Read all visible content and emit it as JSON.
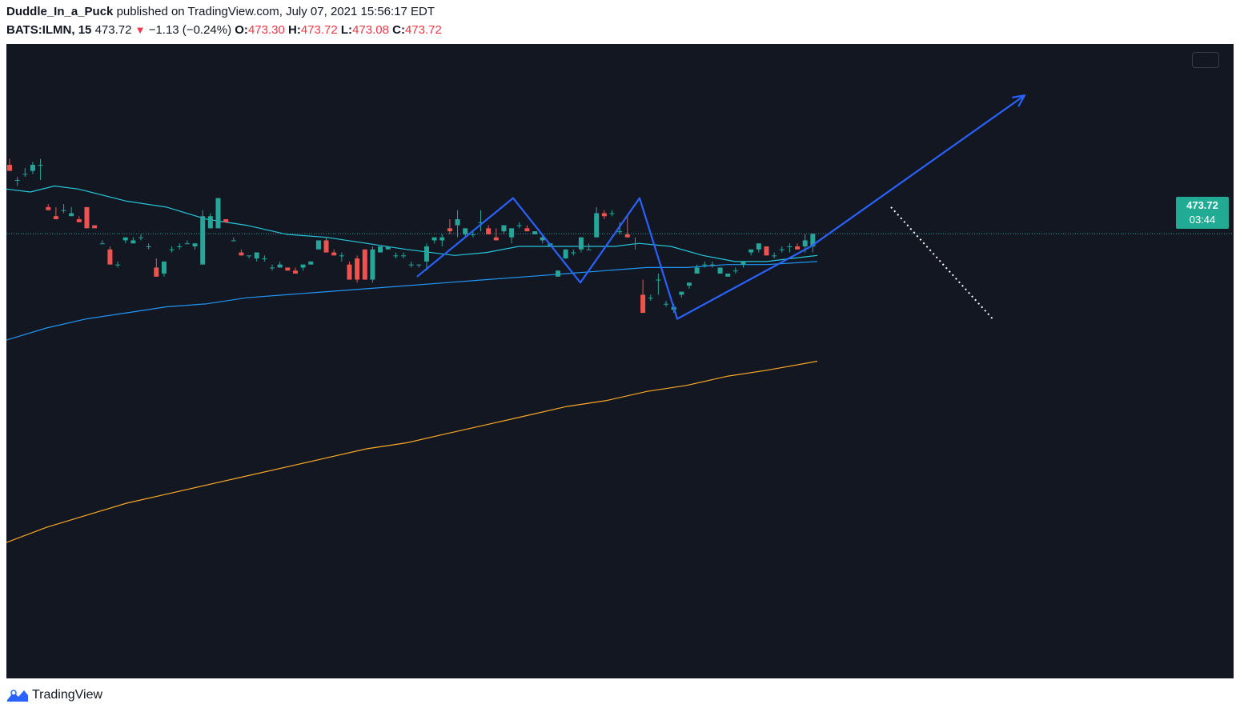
{
  "header": {
    "author": "Duddle_In_a_Puck",
    "published_text": "published on TradingView.com, July 07, 2021 15:56:17 EDT",
    "symbol": "BATS:ILMN, 15",
    "last_price": "473.72",
    "change": "−1.13 (−0.24%)",
    "o_label": "O:",
    "o_value": "473.30",
    "h_label": "H:",
    "h_value": "473.72",
    "l_label": "L:",
    "l_value": "473.08",
    "c_label": "C:",
    "c_value": "473.72"
  },
  "price_tag": {
    "price": "473.72",
    "countdown": "03:44"
  },
  "footer": {
    "brand": "TradingView",
    "logo_icon": "tradingview-logo-icon"
  },
  "colors": {
    "background": "#131722",
    "up": "#26a69a",
    "down": "#ef5350",
    "ma_short": "#26c6da",
    "ma_mid": "#2196f3",
    "ma_long": "#f9a825",
    "drawing": "#2962ff"
  },
  "chart_data": {
    "type": "candlestick",
    "symbol": "BATS:ILMN",
    "interval": "15",
    "last": 473.72,
    "ohlc_last": {
      "open": 473.3,
      "high": 473.72,
      "low": 473.08,
      "close": 473.72
    },
    "y_range": [
      459.0,
      480.0
    ],
    "candles": [
      [
        476.0,
        476.2,
        475.8,
        475.8
      ],
      [
        475.5,
        475.6,
        475.3,
        475.5
      ],
      [
        475.7,
        475.9,
        475.6,
        475.7
      ],
      [
        475.8,
        476.1,
        475.7,
        476.0
      ],
      [
        476.0,
        476.2,
        475.5,
        476.0
      ],
      [
        474.6,
        474.7,
        474.5,
        474.5
      ],
      [
        474.3,
        474.6,
        474.2,
        474.2
      ],
      [
        474.5,
        474.7,
        474.4,
        474.5
      ],
      [
        474.3,
        474.6,
        474.3,
        474.4
      ],
      [
        474.2,
        474.3,
        474.1,
        474.1
      ],
      [
        474.6,
        474.6,
        473.9,
        473.9
      ],
      [
        474.0,
        474.0,
        474.0,
        473.9
      ],
      [
        473.4,
        473.5,
        473.4,
        473.4
      ],
      [
        473.2,
        473.3,
        472.7,
        472.7
      ],
      [
        472.7,
        472.8,
        472.6,
        472.7
      ],
      [
        473.5,
        473.6,
        473.4,
        473.6
      ],
      [
        473.4,
        473.6,
        473.4,
        473.5
      ],
      [
        473.6,
        473.7,
        473.5,
        473.6
      ],
      [
        473.3,
        473.4,
        473.2,
        473.3
      ],
      [
        472.6,
        472.9,
        472.3,
        472.3
      ],
      [
        472.4,
        472.8,
        472.3,
        472.8
      ],
      [
        473.2,
        473.3,
        473.1,
        473.2
      ],
      [
        473.3,
        473.4,
        473.2,
        473.3
      ],
      [
        473.4,
        473.5,
        473.4,
        473.4
      ],
      [
        473.3,
        473.4,
        473.2,
        473.4
      ],
      [
        472.7,
        474.5,
        472.7,
        474.3
      ],
      [
        473.9,
        474.4,
        473.9,
        474.3
      ],
      [
        473.9,
        474.9,
        473.9,
        474.9
      ],
      [
        474.2,
        474.2,
        474.1,
        474.1
      ],
      [
        473.5,
        473.6,
        473.5,
        473.5
      ],
      [
        473.1,
        473.2,
        473.0,
        473.0
      ],
      [
        473.0,
        473.0,
        472.9,
        473.0
      ],
      [
        472.9,
        473.1,
        472.8,
        473.1
      ],
      [
        472.9,
        473.0,
        472.8,
        472.9
      ],
      [
        472.6,
        472.7,
        472.5,
        472.6
      ],
      [
        472.6,
        472.8,
        472.6,
        472.7
      ],
      [
        472.6,
        472.6,
        472.5,
        472.5
      ],
      [
        472.5,
        472.6,
        472.4,
        472.4
      ],
      [
        472.6,
        472.7,
        472.5,
        472.7
      ],
      [
        472.7,
        472.8,
        472.7,
        472.8
      ],
      [
        473.2,
        473.4,
        473.2,
        473.5
      ],
      [
        473.5,
        473.6,
        473.1,
        473.1
      ],
      [
        473.1,
        473.2,
        473.0,
        473.0
      ],
      [
        473.0,
        473.1,
        472.8,
        473.0
      ],
      [
        472.7,
        472.8,
        472.2,
        472.2
      ],
      [
        472.9,
        473.0,
        472.1,
        472.2
      ],
      [
        473.2,
        473.2,
        472.2,
        472.2
      ],
      [
        472.2,
        473.3,
        472.1,
        473.2
      ],
      [
        473.1,
        473.3,
        473.1,
        473.3
      ],
      [
        473.2,
        473.3,
        473.2,
        473.3
      ],
      [
        473.0,
        473.1,
        472.9,
        473.0
      ],
      [
        473.0,
        473.1,
        472.9,
        473.0
      ],
      [
        472.7,
        472.8,
        472.6,
        472.7
      ],
      [
        472.7,
        472.7,
        472.6,
        472.7
      ],
      [
        472.8,
        473.4,
        472.5,
        473.3
      ],
      [
        473.5,
        473.6,
        473.4,
        473.6
      ],
      [
        473.5,
        473.7,
        473.3,
        473.6
      ],
      [
        473.9,
        474.2,
        473.7,
        473.8
      ],
      [
        474.0,
        474.5,
        473.6,
        474.2
      ],
      [
        473.7,
        473.9,
        473.6,
        473.9
      ],
      [
        473.7,
        473.8,
        473.6,
        473.7
      ],
      [
        474.1,
        474.5,
        473.8,
        474.1
      ],
      [
        473.9,
        474.0,
        473.7,
        473.7
      ],
      [
        473.6,
        473.9,
        473.5,
        473.5
      ],
      [
        473.8,
        474.0,
        473.7,
        474.0
      ],
      [
        473.6,
        473.9,
        473.4,
        473.9
      ],
      [
        474.0,
        474.1,
        473.9,
        474.0
      ],
      [
        473.9,
        474.0,
        473.8,
        473.8
      ],
      [
        473.7,
        473.8,
        473.7,
        473.8
      ],
      [
        473.5,
        473.7,
        473.4,
        473.6
      ],
      [
        473.3,
        473.4,
        473.3,
        473.4
      ],
      [
        472.3,
        472.5,
        472.3,
        472.5
      ],
      [
        472.9,
        473.1,
        472.9,
        473.2
      ],
      [
        473.1,
        473.2,
        473.0,
        473.1
      ],
      [
        473.2,
        473.6,
        473.1,
        473.6
      ],
      [
        473.2,
        473.4,
        473.2,
        473.2
      ],
      [
        473.6,
        474.6,
        473.6,
        474.4
      ],
      [
        474.4,
        474.5,
        474.2,
        474.3
      ],
      [
        474.4,
        474.5,
        474.3,
        474.4
      ],
      [
        473.8,
        474.1,
        473.7,
        473.8
      ],
      [
        473.7,
        474.3,
        473.6,
        473.6
      ],
      [
        473.4,
        473.6,
        473.2,
        473.4
      ],
      [
        471.7,
        472.2,
        471.1,
        471.1
      ],
      [
        471.6,
        471.7,
        471.5,
        471.6
      ],
      [
        472.2,
        472.4,
        471.7,
        472.2
      ],
      [
        471.4,
        471.5,
        471.3,
        471.4
      ],
      [
        471.2,
        471.4,
        471.1,
        471.3
      ],
      [
        471.7,
        471.8,
        471.6,
        471.8
      ],
      [
        472.0,
        472.1,
        471.9,
        472.1
      ],
      [
        472.4,
        472.7,
        472.4,
        472.6
      ],
      [
        472.7,
        472.8,
        472.6,
        472.7
      ],
      [
        472.7,
        472.8,
        472.6,
        472.7
      ],
      [
        472.4,
        472.6,
        472.4,
        472.6
      ],
      [
        472.3,
        472.4,
        472.3,
        472.4
      ],
      [
        472.5,
        472.6,
        472.4,
        472.5
      ],
      [
        472.7,
        472.8,
        472.6,
        472.8
      ],
      [
        473.1,
        473.2,
        473.0,
        473.2
      ],
      [
        473.2,
        473.4,
        473.1,
        473.4
      ],
      [
        473.3,
        473.3,
        473.0,
        473.0
      ],
      [
        473.0,
        473.1,
        472.9,
        473.0
      ],
      [
        473.2,
        473.3,
        473.1,
        473.2
      ],
      [
        473.3,
        473.4,
        473.1,
        473.3
      ],
      [
        473.3,
        473.4,
        473.2,
        473.2
      ],
      [
        473.3,
        473.7,
        473.1,
        473.5
      ],
      [
        473.3,
        473.7,
        473.1,
        473.72
      ]
    ],
    "ma_short": [
      [
        0,
        475.2
      ],
      [
        30,
        475.1
      ],
      [
        60,
        475.3
      ],
      [
        90,
        475.2
      ],
      [
        150,
        474.8
      ],
      [
        200,
        474.6
      ],
      [
        250,
        474.2
      ],
      [
        300,
        474.0
      ],
      [
        350,
        473.7
      ],
      [
        400,
        473.6
      ],
      [
        450,
        473.4
      ],
      [
        500,
        473.2
      ],
      [
        560,
        473.0
      ],
      [
        600,
        473.1
      ],
      [
        640,
        473.3
      ],
      [
        680,
        473.3
      ],
      [
        720,
        473.3
      ],
      [
        760,
        473.3
      ],
      [
        790,
        473.4
      ],
      [
        830,
        473.3
      ],
      [
        870,
        473.0
      ],
      [
        910,
        472.8
      ],
      [
        950,
        472.8
      ],
      [
        980,
        472.9
      ],
      [
        1013,
        473.0
      ]
    ],
    "ma_mid": [
      [
        0,
        470.2
      ],
      [
        50,
        470.6
      ],
      [
        100,
        470.9
      ],
      [
        150,
        471.1
      ],
      [
        200,
        471.3
      ],
      [
        250,
        471.4
      ],
      [
        300,
        471.6
      ],
      [
        350,
        471.7
      ],
      [
        400,
        471.8
      ],
      [
        450,
        471.9
      ],
      [
        500,
        472.0
      ],
      [
        550,
        472.1
      ],
      [
        600,
        472.2
      ],
      [
        650,
        472.3
      ],
      [
        700,
        472.4
      ],
      [
        750,
        472.5
      ],
      [
        800,
        472.6
      ],
      [
        850,
        472.6
      ],
      [
        900,
        472.7
      ],
      [
        950,
        472.7
      ],
      [
        1013,
        472.8
      ]
    ],
    "ma_long": [
      [
        0,
        463.5
      ],
      [
        50,
        464.0
      ],
      [
        100,
        464.4
      ],
      [
        150,
        464.8
      ],
      [
        200,
        465.1
      ],
      [
        250,
        465.4
      ],
      [
        300,
        465.7
      ],
      [
        350,
        466.0
      ],
      [
        400,
        466.3
      ],
      [
        450,
        466.6
      ],
      [
        500,
        466.8
      ],
      [
        550,
        467.1
      ],
      [
        600,
        467.4
      ],
      [
        650,
        467.7
      ],
      [
        700,
        468.0
      ],
      [
        750,
        468.2
      ],
      [
        800,
        468.5
      ],
      [
        850,
        468.7
      ],
      [
        900,
        469.0
      ],
      [
        950,
        469.2
      ],
      [
        1013,
        469.5
      ]
    ],
    "pattern_lines": [
      [
        [
          513,
          472.3
        ],
        [
          633,
          474.9
        ],
        [
          717,
          472.1
        ],
        [
          791,
          474.9
        ],
        [
          838,
          470.9
        ],
        [
          1005,
          473.3
        ],
        [
          1272,
          478.3
        ]
      ]
    ],
    "projection": [
      [
        1105,
        474.6
      ],
      [
        1232,
        470.9
      ]
    ]
  }
}
